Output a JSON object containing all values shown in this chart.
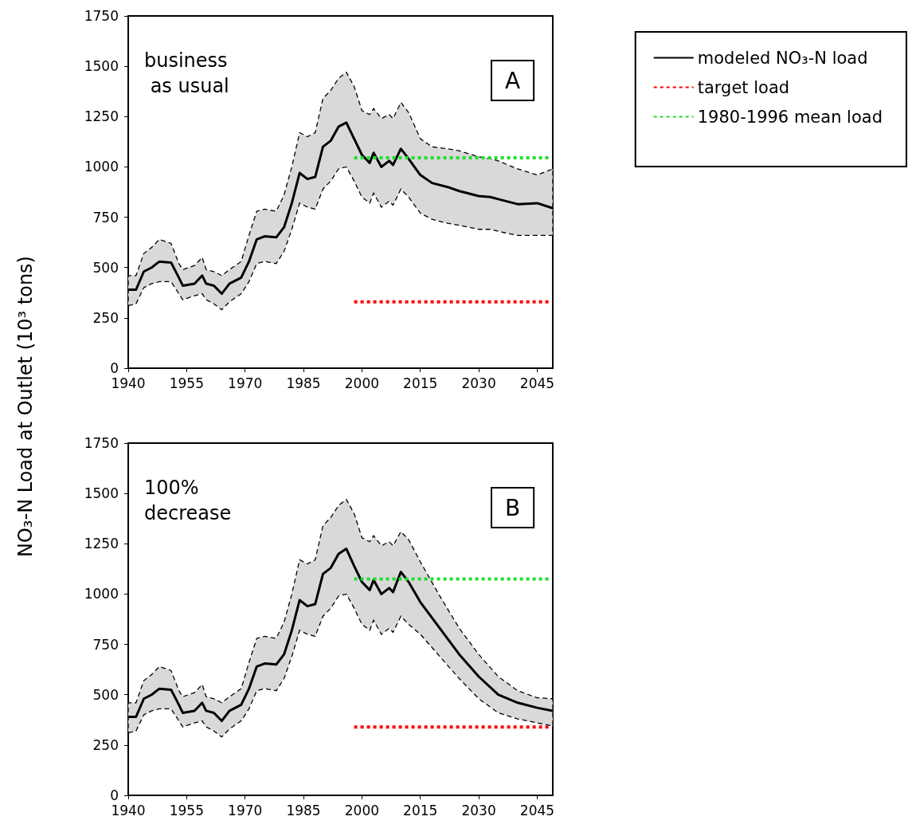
{
  "chart_data": [
    {
      "type": "line",
      "ylabel": "NO₃-N Load at Outlet  (10³ tons)",
      "annotations": [
        "business as usual",
        "A"
      ],
      "xlim": [
        1940,
        2049
      ],
      "xticks": [
        1940,
        1955,
        1970,
        1985,
        2000,
        2015,
        2030,
        2045
      ],
      "ylim": [
        0,
        1750
      ],
      "yticks": [
        0,
        250,
        500,
        750,
        1000,
        1250,
        1500,
        1750
      ],
      "grid": false,
      "legend": "top right",
      "marker": "none",
      "series": [
        {
          "name": "modeled NO₃-N load",
          "color": "#000000",
          "line_style": "solid",
          "x": [
            1940,
            1942,
            1944,
            1946,
            1948,
            1951,
            1953,
            1954,
            1957,
            1959,
            1960,
            1962,
            1964,
            1966,
            1969,
            1971,
            1973,
            1975,
            1978,
            1980,
            1982,
            1984,
            1986,
            1988,
            1990,
            1992,
            1994,
            1996,
            1998,
            2000,
            2002,
            2003,
            2005,
            2007,
            2008,
            2010,
            2012,
            2015,
            2018,
            2022,
            2025,
            2030,
            2033,
            2035,
            2040,
            2045,
            2049
          ],
          "values": [
            390,
            390,
            480,
            500,
            530,
            525,
            450,
            410,
            420,
            460,
            420,
            410,
            370,
            420,
            450,
            530,
            640,
            655,
            650,
            700,
            820,
            970,
            940,
            950,
            1100,
            1130,
            1200,
            1220,
            1140,
            1060,
            1020,
            1070,
            1000,
            1030,
            1010,
            1090,
            1040,
            960,
            920,
            900,
            880,
            855,
            850,
            840,
            815,
            820,
            795
          ],
          "upper": [
            460,
            460,
            570,
            600,
            640,
            620,
            520,
            490,
            510,
            550,
            490,
            480,
            460,
            490,
            530,
            660,
            780,
            790,
            780,
            860,
            1000,
            1170,
            1150,
            1170,
            1340,
            1380,
            1440,
            1470,
            1400,
            1280,
            1260,
            1290,
            1240,
            1260,
            1240,
            1320,
            1270,
            1140,
            1100,
            1090,
            1080,
            1050,
            1040,
            1030,
            990,
            960,
            990
          ],
          "lower": [
            310,
            320,
            400,
            420,
            430,
            430,
            370,
            340,
            360,
            370,
            340,
            320,
            290,
            330,
            370,
            430,
            520,
            530,
            520,
            580,
            690,
            820,
            800,
            790,
            890,
            930,
            990,
            1000,
            930,
            850,
            820,
            870,
            800,
            830,
            810,
            890,
            850,
            770,
            740,
            720,
            710,
            690,
            690,
            680,
            660,
            660,
            660
          ]
        },
        {
          "name": "target load",
          "color": "#ff0000",
          "line_style": "dotted",
          "x": [
            1998,
            2048
          ],
          "values": [
            330,
            330
          ]
        },
        {
          "name": "1980-1996 mean load",
          "color": "#22dd33",
          "line_style": "dotted",
          "x": [
            1998,
            2048
          ],
          "values": [
            1045,
            1045
          ]
        }
      ]
    },
    {
      "type": "line",
      "annotations": [
        "100% decrease",
        "B"
      ],
      "xlim": [
        1940,
        2049
      ],
      "xticks": [
        1940,
        1955,
        1970,
        1985,
        2000,
        2015,
        2030,
        2045
      ],
      "ylim": [
        0,
        1750
      ],
      "yticks": [
        0,
        250,
        500,
        750,
        1000,
        1250,
        1500,
        1750
      ],
      "grid": false,
      "marker": "none",
      "series": [
        {
          "color": "#000000",
          "line_style": "solid",
          "x": [
            1940,
            1942,
            1944,
            1946,
            1948,
            1951,
            1953,
            1954,
            1957,
            1959,
            1960,
            1962,
            1964,
            1966,
            1969,
            1971,
            1973,
            1975,
            1978,
            1980,
            1982,
            1984,
            1986,
            1988,
            1990,
            1992,
            1994,
            1996,
            1998,
            2000,
            2002,
            2003,
            2005,
            2007,
            2008,
            2010,
            2012,
            2015,
            2020,
            2025,
            2030,
            2035,
            2040,
            2045,
            2049
          ],
          "values": [
            390,
            390,
            480,
            500,
            530,
            525,
            450,
            410,
            420,
            460,
            420,
            410,
            370,
            420,
            450,
            530,
            640,
            655,
            650,
            700,
            820,
            970,
            940,
            950,
            1100,
            1130,
            1200,
            1225,
            1140,
            1060,
            1020,
            1070,
            1000,
            1030,
            1010,
            1110,
            1060,
            960,
            830,
            700,
            590,
            500,
            460,
            435,
            420
          ],
          "upper": [
            460,
            460,
            570,
            600,
            640,
            620,
            520,
            490,
            510,
            550,
            490,
            480,
            460,
            490,
            530,
            660,
            780,
            790,
            780,
            860,
            1000,
            1170,
            1150,
            1170,
            1340,
            1380,
            1440,
            1470,
            1400,
            1280,
            1260,
            1290,
            1240,
            1260,
            1240,
            1310,
            1270,
            1160,
            990,
            830,
            700,
            590,
            520,
            485,
            480
          ],
          "lower": [
            310,
            320,
            400,
            420,
            430,
            430,
            370,
            340,
            360,
            370,
            340,
            320,
            290,
            330,
            370,
            430,
            520,
            530,
            520,
            580,
            690,
            820,
            800,
            790,
            890,
            930,
            990,
            1000,
            930,
            850,
            820,
            870,
            800,
            830,
            810,
            890,
            850,
            800,
            690,
            580,
            480,
            410,
            380,
            360,
            345
          ]
        },
        {
          "color": "#ff0000",
          "line_style": "dotted",
          "x": [
            1998,
            2048
          ],
          "values": [
            340,
            340
          ]
        },
        {
          "color": "#22dd33",
          "line_style": "dotted",
          "x": [
            1998,
            2048
          ],
          "values": [
            1075,
            1075
          ]
        }
      ]
    }
  ]
}
